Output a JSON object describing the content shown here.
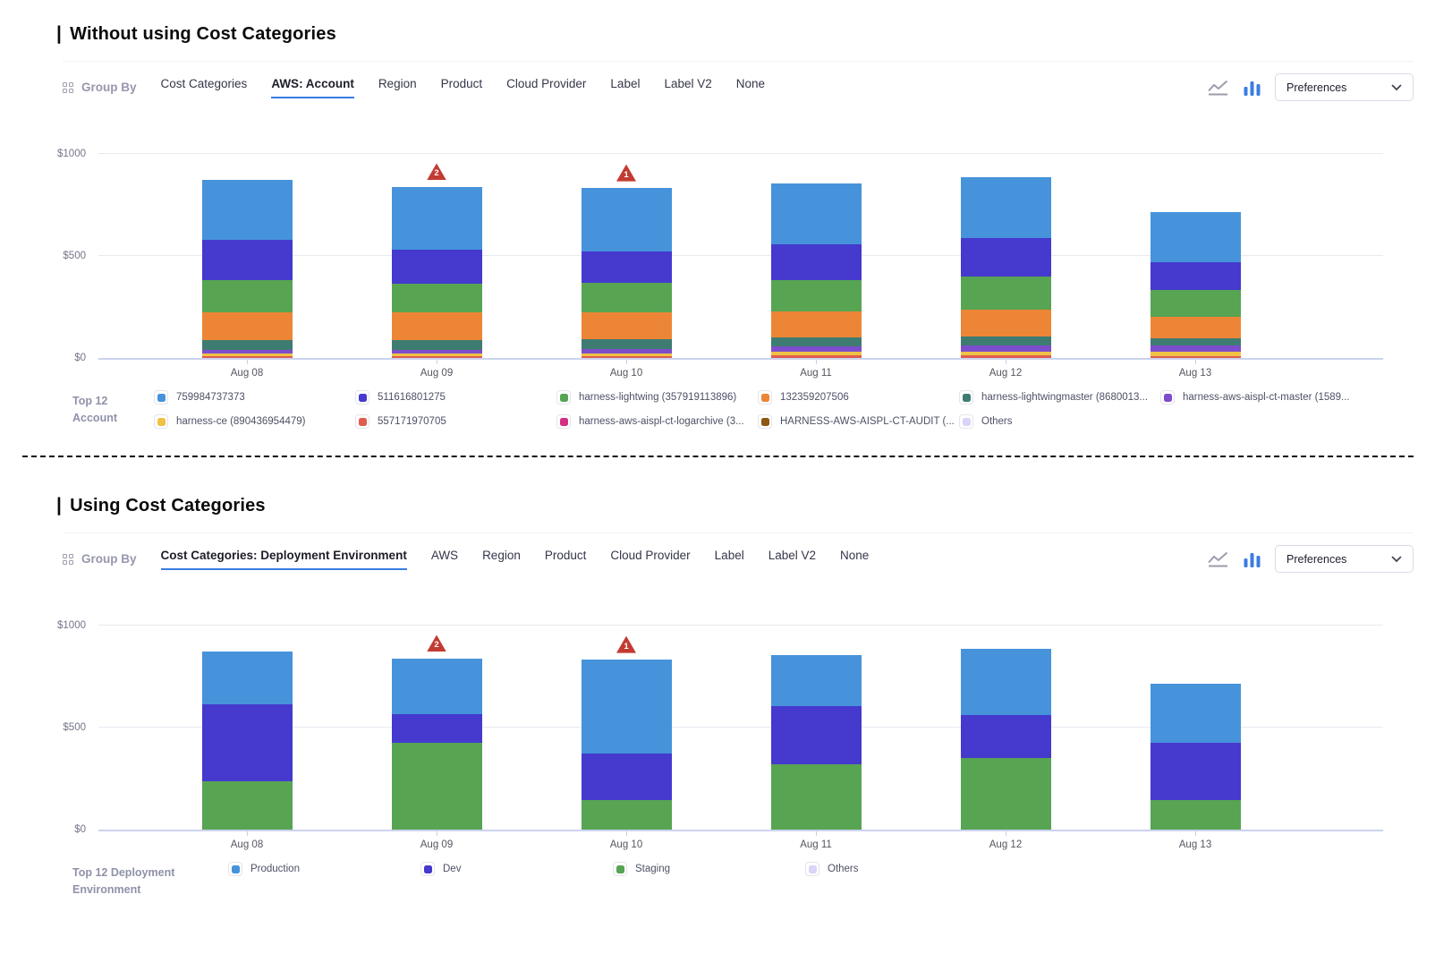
{
  "sections": [
    {
      "title_prefix": "|",
      "title": "Without using Cost Categories",
      "toolbar": {
        "group_by_label": "Group By",
        "tabs": [
          {
            "label": "Cost Categories",
            "active": false
          },
          {
            "label": "AWS: Account",
            "active": true
          },
          {
            "label": "Region",
            "active": false
          },
          {
            "label": "Product",
            "active": false
          },
          {
            "label": "Cloud Provider",
            "active": false
          },
          {
            "label": "Label",
            "active": false
          },
          {
            "label": "Label V2",
            "active": false
          },
          {
            "label": "None",
            "active": false
          }
        ],
        "chart_type_icons": [
          "line-chart-icon",
          "bar-chart-icon-active"
        ],
        "preferences_label": "Preferences"
      },
      "legend": {
        "title_line1": "Top 12",
        "title_line2": "Account",
        "items": [
          {
            "label": "759984737373",
            "color": "#4693db"
          },
          {
            "label": "511616801275",
            "color": "#4539ce"
          },
          {
            "label": "harness-lightwing (357919113896)",
            "color": "#57a452"
          },
          {
            "label": "132359207506",
            "color": "#ec8636"
          },
          {
            "label": "harness-lightwingmaster (8680013...",
            "color": "#3e7c72"
          },
          {
            "label": "harness-aws-aispl-ct-master (1589...",
            "color": "#7d4ecb"
          },
          {
            "label": "harness-ce (890436954479)",
            "color": "#efc145"
          },
          {
            "label": "557171970705",
            "color": "#df5c4e"
          },
          {
            "label": "harness-aws-aispl-ct-logarchive (3...",
            "color": "#d62e82"
          },
          {
            "label": "HARNESS-AWS-AISPL-CT-AUDIT (...",
            "color": "#8d5714"
          },
          {
            "label": "Others",
            "color": "#d8d5f8"
          }
        ]
      }
    },
    {
      "title_prefix": "|",
      "title": "Using Cost Categories",
      "toolbar": {
        "group_by_label": "Group By",
        "tabs": [
          {
            "label": "Cost Categories: Deployment Environment",
            "active": true
          },
          {
            "label": "AWS",
            "active": false
          },
          {
            "label": "Region",
            "active": false
          },
          {
            "label": "Product",
            "active": false
          },
          {
            "label": "Cloud Provider",
            "active": false
          },
          {
            "label": "Label",
            "active": false
          },
          {
            "label": "Label V2",
            "active": false
          },
          {
            "label": "None",
            "active": false
          }
        ],
        "chart_type_icons": [
          "line-chart-icon",
          "bar-chart-icon-active"
        ],
        "preferences_label": "Preferences"
      },
      "legend": {
        "title_line1": "Top 12 Deployment",
        "title_line2": "Environment",
        "items": [
          {
            "label": "Production",
            "color": "#4693db"
          },
          {
            "label": "Dev",
            "color": "#4539ce"
          },
          {
            "label": "Staging",
            "color": "#57a452"
          },
          {
            "label": "Others",
            "color": "#d8d5f8"
          }
        ]
      }
    }
  ],
  "colors": {
    "accent_blue": "#3b7ce2",
    "anomaly_red": "#c23b32",
    "axis_line": "#ccd3ee",
    "gridline": "#e9e9f1"
  },
  "chart_data": [
    {
      "type": "bar",
      "stacked": true,
      "stack_order": "bottom-to-top",
      "title": "Without using Cost Categories",
      "group_by": "AWS: Account",
      "categories": [
        "Aug 08",
        "Aug 09",
        "Aug 10",
        "Aug 11",
        "Aug 12",
        "Aug 13"
      ],
      "yticks": [
        {
          "label": "$0",
          "value": 0
        },
        {
          "label": "$500",
          "value": 500
        },
        {
          "label": "$1000",
          "value": 1000
        }
      ],
      "ylim": [
        0,
        1100
      ],
      "grid": "horizontal",
      "legend_position": "bottom",
      "currency": "USD",
      "series": [
        {
          "name": "557171970705",
          "color": "#df5c4e",
          "values": [
            10,
            8,
            10,
            12,
            12,
            8
          ]
        },
        {
          "name": "harness-ce (890436954479)",
          "color": "#efc145",
          "values": [
            10,
            12,
            14,
            18,
            20,
            25
          ]
        },
        {
          "name": "harness-aws-aispl-ct-master (1589...",
          "color": "#7d4ecb",
          "values": [
            20,
            18,
            20,
            25,
            28,
            30
          ]
        },
        {
          "name": "harness-lightwingmaster (8680013...",
          "color": "#3e7c72",
          "values": [
            50,
            48,
            48,
            47,
            45,
            35
          ]
        },
        {
          "name": "132359207506",
          "color": "#ec8636",
          "values": [
            135,
            137,
            133,
            126,
            134,
            106
          ]
        },
        {
          "name": "harness-lightwing (357919113896)",
          "color": "#57a452",
          "values": [
            155,
            142,
            142,
            153,
            161,
            128
          ]
        },
        {
          "name": "511616801275",
          "color": "#4539ce",
          "values": [
            200,
            165,
            156,
            176,
            187,
            137
          ]
        },
        {
          "name": "759984737373",
          "color": "#4693db",
          "values": [
            295,
            310,
            312,
            298,
            298,
            246
          ]
        }
      ],
      "annotations": [
        {
          "category": "Aug 09",
          "type": "anomaly",
          "badge": "2"
        },
        {
          "category": "Aug 10",
          "type": "anomaly",
          "badge": "1"
        }
      ]
    },
    {
      "type": "bar",
      "stacked": true,
      "stack_order": "bottom-to-top",
      "title": "Using Cost Categories",
      "group_by": "Cost Categories: Deployment Environment",
      "categories": [
        "Aug 08",
        "Aug 09",
        "Aug 10",
        "Aug 11",
        "Aug 12",
        "Aug 13"
      ],
      "yticks": [
        {
          "label": "$0",
          "value": 0
        },
        {
          "label": "$500",
          "value": 500
        },
        {
          "label": "$1000",
          "value": 1000
        }
      ],
      "ylim": [
        0,
        1100
      ],
      "grid": "horizontal",
      "legend_position": "bottom",
      "currency": "USD",
      "series": [
        {
          "name": "Staging",
          "color": "#57a452",
          "values": [
            235,
            425,
            145,
            320,
            350,
            145
          ]
        },
        {
          "name": "Dev",
          "color": "#4539ce",
          "values": [
            380,
            140,
            230,
            285,
            210,
            280
          ]
        },
        {
          "name": "Production",
          "color": "#4693db",
          "values": [
            260,
            275,
            460,
            250,
            325,
            290
          ]
        }
      ],
      "annotations": [
        {
          "category": "Aug 09",
          "type": "anomaly",
          "badge": "2"
        },
        {
          "category": "Aug 10",
          "type": "anomaly",
          "badge": "1"
        }
      ]
    }
  ]
}
